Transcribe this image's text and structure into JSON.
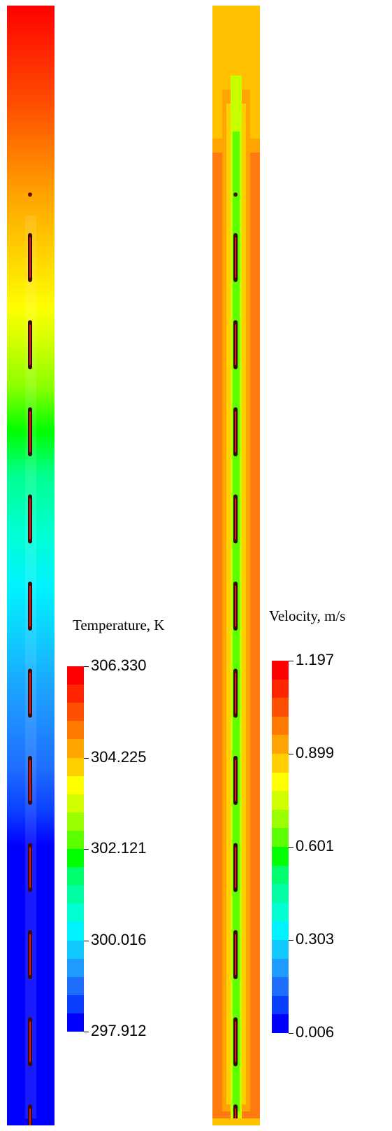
{
  "temperature_legend": {
    "title": "Temperature, K",
    "ticks": [
      "306.330",
      "304.225",
      "302.121",
      "300.016",
      "297.912"
    ]
  },
  "velocity_legend": {
    "title": "Velocity, m/s",
    "ticks": [
      "1.197",
      "0.899",
      "0.601",
      "0.303",
      "0.006"
    ]
  },
  "colormap": [
    "#0000ff",
    "#0b3fff",
    "#1f6fff",
    "#1d9bff",
    "#11c8ff",
    "#00f2ff",
    "#00ffd2",
    "#00ffa5",
    "#00ff6e",
    "#00ff00",
    "#5cff00",
    "#9cff00",
    "#d2ff00",
    "#ffff00",
    "#ffcf00",
    "#ffa400",
    "#ff7a00",
    "#ff4f00",
    "#ff2500",
    "#ff0000"
  ]
}
